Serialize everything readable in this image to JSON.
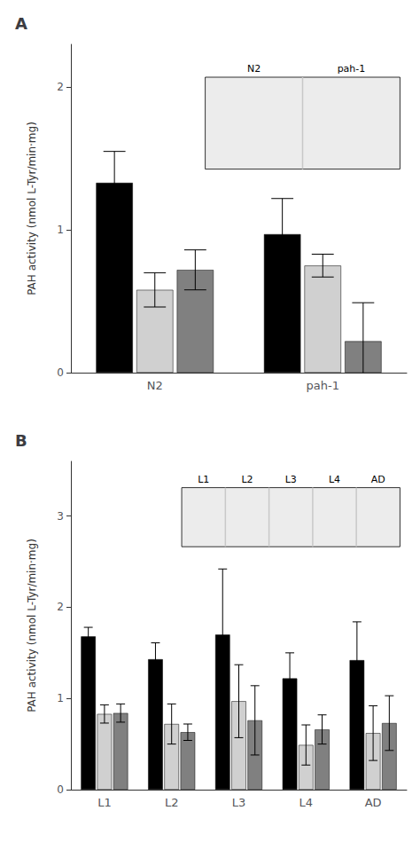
{
  "chart_data": [
    {
      "type": "bar",
      "title": "A",
      "categories": [
        "N2",
        "pah-1"
      ],
      "series": [
        {
          "color": "#000000",
          "values": [
            1.33,
            0.97
          ],
          "errors": [
            0.22,
            0.25
          ]
        },
        {
          "color": "#d0d0d0",
          "values": [
            0.58,
            0.75
          ],
          "errors": [
            0.12,
            0.08
          ]
        },
        {
          "color": "#808080",
          "values": [
            0.72,
            0.22
          ],
          "errors": [
            0.14,
            0.27
          ]
        }
      ],
      "ylabel": "PAH activity (nmol L-Tyr/min·mg)",
      "ylim": [
        0,
        2.3
      ],
      "yticks": [
        0,
        1,
        2
      ],
      "grid": false,
      "annotations": [
        "N2",
        "pah-1"
      ]
    },
    {
      "type": "bar",
      "title": "B",
      "categories": [
        "L1",
        "L2",
        "L3",
        "L4",
        "AD"
      ],
      "series": [
        {
          "color": "#000000",
          "values": [
            1.68,
            1.43,
            1.7,
            1.22,
            1.42
          ],
          "errors": [
            0.1,
            0.18,
            0.72,
            0.28,
            0.42
          ]
        },
        {
          "color": "#d0d0d0",
          "values": [
            0.83,
            0.72,
            0.97,
            0.49,
            0.62
          ],
          "errors": [
            0.1,
            0.22,
            0.4,
            0.22,
            0.3
          ]
        },
        {
          "color": "#808080",
          "values": [
            0.84,
            0.63,
            0.76,
            0.66,
            0.73
          ],
          "errors": [
            0.1,
            0.09,
            0.38,
            0.16,
            0.3
          ]
        }
      ],
      "ylabel": "PAH activity (nmol L-Tyr/min·mg)",
      "ylim": [
        0,
        3.6
      ],
      "yticks": [
        0,
        1,
        2,
        3
      ],
      "grid": false,
      "annotations": [
        "L1",
        "L2",
        "L3",
        "L4",
        "AD"
      ]
    }
  ]
}
